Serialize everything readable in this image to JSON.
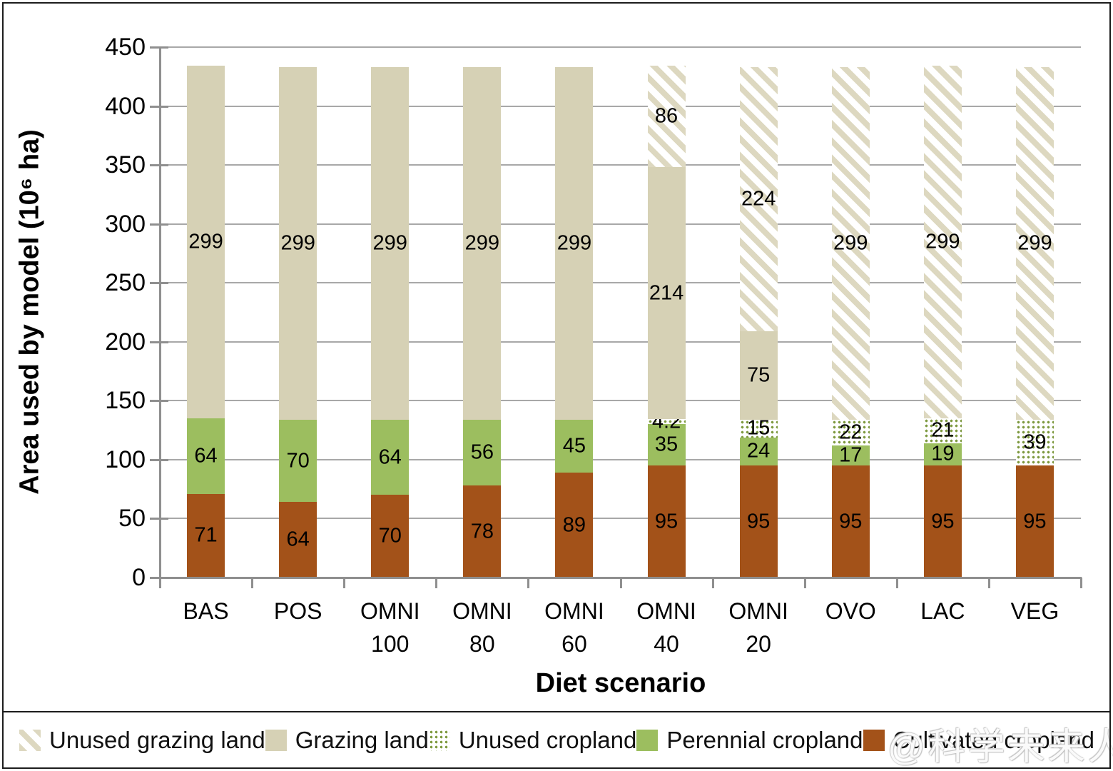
{
  "colors": {
    "cultivated": "#a35219",
    "perennial": "#9cbe5f",
    "grazing": "#d6d1b5",
    "hatch": "#ddd8c0",
    "dot": "#7e9a40",
    "gridline": "#a8a8a8",
    "axis": "#8f8f8f",
    "border": "#1c1c1c"
  },
  "axes": {
    "ylabel": "Area used by model (10⁶ ha)",
    "xlabel": "Diet scenario",
    "ylim": [
      0,
      450
    ],
    "yticks": [
      0,
      50,
      100,
      150,
      200,
      250,
      300,
      350,
      400,
      450
    ]
  },
  "chart_data": {
    "type": "bar",
    "stacked": true,
    "title": "",
    "xlabel": "Diet scenario",
    "ylabel": "Area used by model (10⁶ ha)",
    "ylim": [
      0,
      450
    ],
    "grid": "horizontal",
    "legend_position": "bottom",
    "categories": [
      {
        "line1": "BAS",
        "line2": ""
      },
      {
        "line1": "POS",
        "line2": ""
      },
      {
        "line1": "OMNI",
        "line2": "100"
      },
      {
        "line1": "OMNI",
        "line2": "80"
      },
      {
        "line1": "OMNI",
        "line2": "60"
      },
      {
        "line1": "OMNI",
        "line2": "40"
      },
      {
        "line1": "OMNI",
        "line2": "20"
      },
      {
        "line1": "OVO",
        "line2": ""
      },
      {
        "line1": "LAC",
        "line2": ""
      },
      {
        "line1": "VEG",
        "line2": ""
      }
    ],
    "series": [
      {
        "name": "Cultivated cropland",
        "pattern": "solid",
        "color_key": "cultivated",
        "values": [
          71,
          64,
          70,
          78,
          89,
          95,
          95,
          95,
          95,
          95
        ]
      },
      {
        "name": "Perennial cropland",
        "pattern": "solid",
        "color_key": "perennial",
        "values": [
          64,
          70,
          64,
          56,
          45,
          35,
          24,
          17,
          19,
          0
        ]
      },
      {
        "name": "Unused cropland",
        "pattern": "dots",
        "color_key": "dot",
        "values": [
          0,
          0,
          0,
          0,
          0,
          4.2,
          15,
          22,
          21,
          39
        ]
      },
      {
        "name": "Grazing land",
        "pattern": "solid",
        "color_key": "grazing",
        "values": [
          299,
          299,
          299,
          299,
          299,
          214,
          75,
          0,
          0,
          0
        ]
      },
      {
        "name": "Unused grazing land",
        "pattern": "hatch",
        "color_key": "hatch",
        "values": [
          0,
          0,
          0,
          0,
          0,
          86,
          224,
          299,
          299,
          299
        ]
      }
    ]
  },
  "legend": {
    "items": [
      {
        "label": "Unused grazing land",
        "swatch": "hatch"
      },
      {
        "label": "Grazing land",
        "swatch": "grazing"
      },
      {
        "label": "Unused cropland",
        "swatch": "dots"
      },
      {
        "label": "Perennial cropland",
        "swatch": "perennial"
      },
      {
        "label": "Cultivated cropland",
        "swatch": "cultivated"
      }
    ]
  },
  "watermark": {
    "text": "@科学未来人"
  }
}
